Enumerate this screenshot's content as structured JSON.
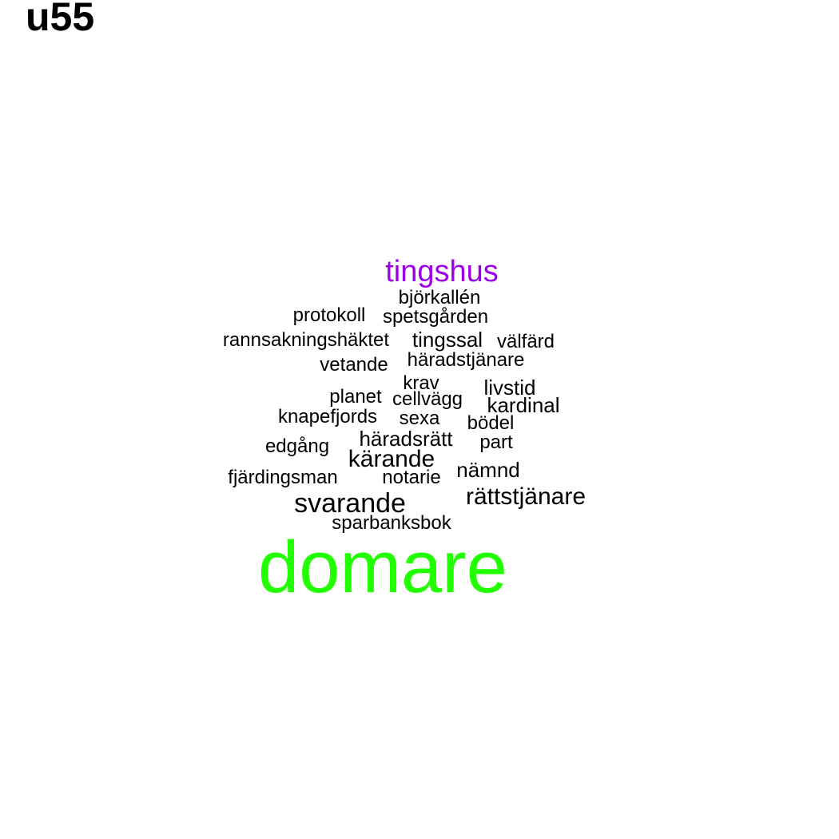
{
  "title": "u55",
  "colors": {
    "default": "#000000",
    "highlight_1": "#22ff00",
    "highlight_2": "#9b00e8"
  },
  "words": [
    {
      "text": "domare",
      "color": "highlight_1"
    },
    {
      "text": "tingshus",
      "color": "highlight_2"
    },
    {
      "text": "björkallén",
      "color": "default"
    },
    {
      "text": "protokoll",
      "color": "default"
    },
    {
      "text": "spetsgården",
      "color": "default"
    },
    {
      "text": "rannsakningshäktet",
      "color": "default"
    },
    {
      "text": "tingssal",
      "color": "default"
    },
    {
      "text": "välfärd",
      "color": "default"
    },
    {
      "text": "vetande",
      "color": "default"
    },
    {
      "text": "häradstjänare",
      "color": "default"
    },
    {
      "text": "krav",
      "color": "default"
    },
    {
      "text": "livstid",
      "color": "default"
    },
    {
      "text": "planet",
      "color": "default"
    },
    {
      "text": "cellvägg",
      "color": "default"
    },
    {
      "text": "kardinal",
      "color": "default"
    },
    {
      "text": "knapefjords",
      "color": "default"
    },
    {
      "text": "sexa",
      "color": "default"
    },
    {
      "text": "bödel",
      "color": "default"
    },
    {
      "text": "häradsrätt",
      "color": "default"
    },
    {
      "text": "edgång",
      "color": "default"
    },
    {
      "text": "part",
      "color": "default"
    },
    {
      "text": "kärande",
      "color": "default"
    },
    {
      "text": "nämnd",
      "color": "default"
    },
    {
      "text": "fjärdingsman",
      "color": "default"
    },
    {
      "text": "notarie",
      "color": "default"
    },
    {
      "text": "svarande",
      "color": "default"
    },
    {
      "text": "rättstjänare",
      "color": "default"
    },
    {
      "text": "sparbanksbok",
      "color": "default"
    }
  ]
}
